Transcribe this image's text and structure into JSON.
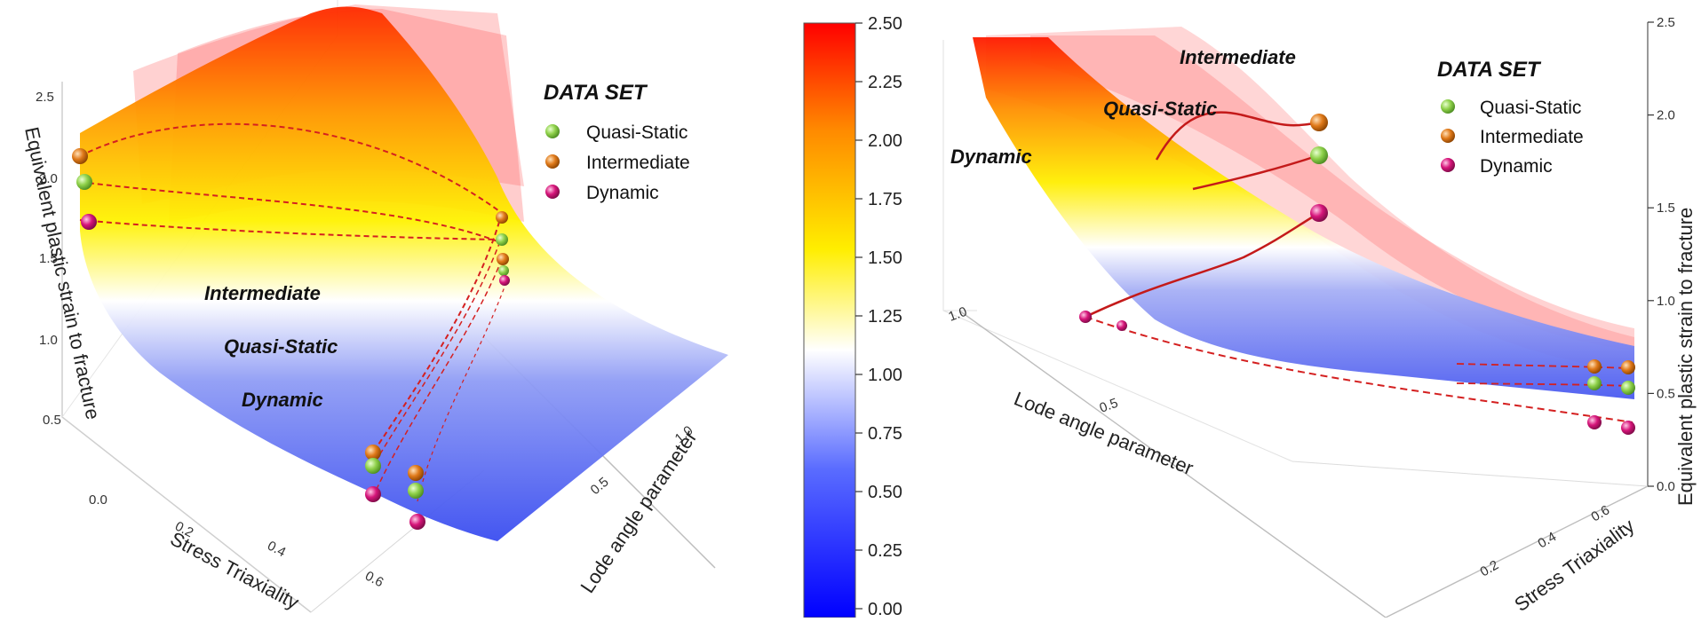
{
  "colors": {
    "quasi_static": "#8fd14a",
    "intermediate": "#e07a1a",
    "dynamic": "#d6157a",
    "curve": "#d42020",
    "colormap": [
      "#0000ff",
      "#ffffff",
      "#ffee00",
      "#ff9900",
      "#ff0000"
    ]
  },
  "colorbar": {
    "ticks": [
      "2.50",
      "2.25",
      "2.00",
      "1.75",
      "1.50",
      "1.25",
      "1.00",
      "0.75",
      "0.50",
      "0.25",
      "0.00"
    ]
  },
  "chart_data": [
    {
      "type": "3d-surface",
      "zlabel": "Equivalent plastic strain to fracture",
      "xlabel": "Stress Triaxiality",
      "ylabel": "Lode angle parameter",
      "z_ticks": [
        "0.0",
        "0.5",
        "1.0",
        "1.5",
        "2.0",
        "2.5"
      ],
      "x_ticks": [
        "0.2",
        "0.4",
        "0.6"
      ],
      "y_ticks": [
        "0.5",
        "1.0"
      ],
      "zlim": [
        0,
        2.5
      ],
      "legend": {
        "title": "DATA SET",
        "entries": [
          "Quasi-Static",
          "Intermediate",
          "Dynamic"
        ]
      },
      "surface_labels": [
        "Intermediate",
        "Quasi-Static",
        "Dynamic"
      ],
      "series": [
        {
          "name": "Quasi-Static",
          "z_at_low_triaxiality": 2.0,
          "z_at_high_triaxiality": 0.35
        },
        {
          "name": "Intermediate",
          "z_at_low_triaxiality": 2.15,
          "z_at_high_triaxiality": 0.4
        },
        {
          "name": "Dynamic",
          "z_at_low_triaxiality": 1.78,
          "z_at_high_triaxiality": 0.2
        }
      ]
    },
    {
      "type": "3d-surface",
      "zlabel": "Equivalent plastic strain to fracture",
      "xlabel": "Lode angle parameter",
      "ylabel": "Stress Triaxiality",
      "z_ticks": [
        "0.0",
        "0.5",
        "1.0",
        "1.5",
        "2.0",
        "2.5"
      ],
      "x_ticks": [
        "1.0",
        "0.5"
      ],
      "y_ticks": [
        "0.2",
        "0.4",
        "0.6"
      ],
      "zlim": [
        0,
        2.5
      ],
      "legend": {
        "title": "DATA SET",
        "entries": [
          "Quasi-Static",
          "Intermediate",
          "Dynamic"
        ]
      },
      "surface_labels": [
        "Intermediate",
        "Quasi-Static",
        "Dynamic"
      ],
      "series": [
        {
          "name": "Quasi-Static",
          "z_peak": 1.9,
          "z_end": 0.6
        },
        {
          "name": "Intermediate",
          "z_peak": 2.1,
          "z_end": 0.7
        },
        {
          "name": "Dynamic",
          "z_peak": 1.6,
          "z_end": 0.45
        }
      ]
    }
  ]
}
